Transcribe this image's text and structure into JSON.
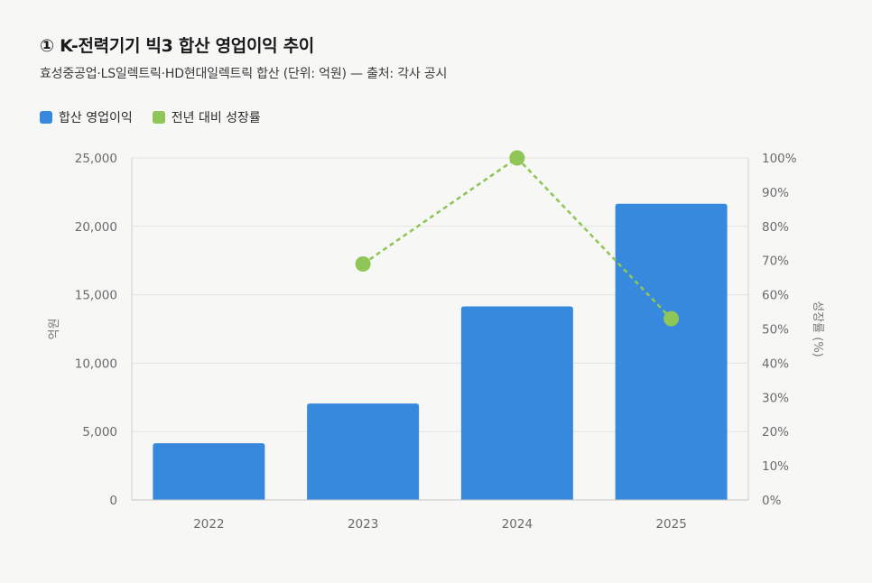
{
  "title": "① K-전력기기 빅3 합산 영업이익 추이",
  "subtitle": "효성중공업·LS일렉트릭·HD현대일렉트릭 합산 (단위: 억원) — 출처: 각사 공시",
  "legend": [
    {
      "label": "합산 영업이익",
      "color": "#3689dc"
    },
    {
      "label": "전년 대비 성장률",
      "color": "#8fc657"
    }
  ],
  "chart_data": {
    "type": "bar",
    "categories": [
      "2022",
      "2023",
      "2024",
      "2025"
    ],
    "series": [
      {
        "name": "합산 영업이익",
        "type": "bar",
        "axis": "left",
        "color": "#3689dc",
        "values": [
          4150,
          7050,
          14150,
          21650
        ]
      },
      {
        "name": "전년 대비 성장률",
        "type": "line",
        "style": "dashed",
        "axis": "right",
        "color": "#8fc657",
        "values": [
          null,
          69,
          100,
          53
        ]
      }
    ],
    "ylabel": "억원",
    "y2label": "성장률 (%)",
    "ylim": [
      0,
      25000
    ],
    "y2lim": [
      0,
      100
    ],
    "yticks": [
      "0",
      "5,000",
      "10,000",
      "15,000",
      "20,000",
      "25,000"
    ],
    "y2ticks": [
      "0%",
      "10%",
      "20%",
      "30%",
      "40%",
      "50%",
      "60%",
      "70%",
      "80%",
      "90%",
      "100%"
    ],
    "grid": true,
    "legend_position": "top-left"
  }
}
